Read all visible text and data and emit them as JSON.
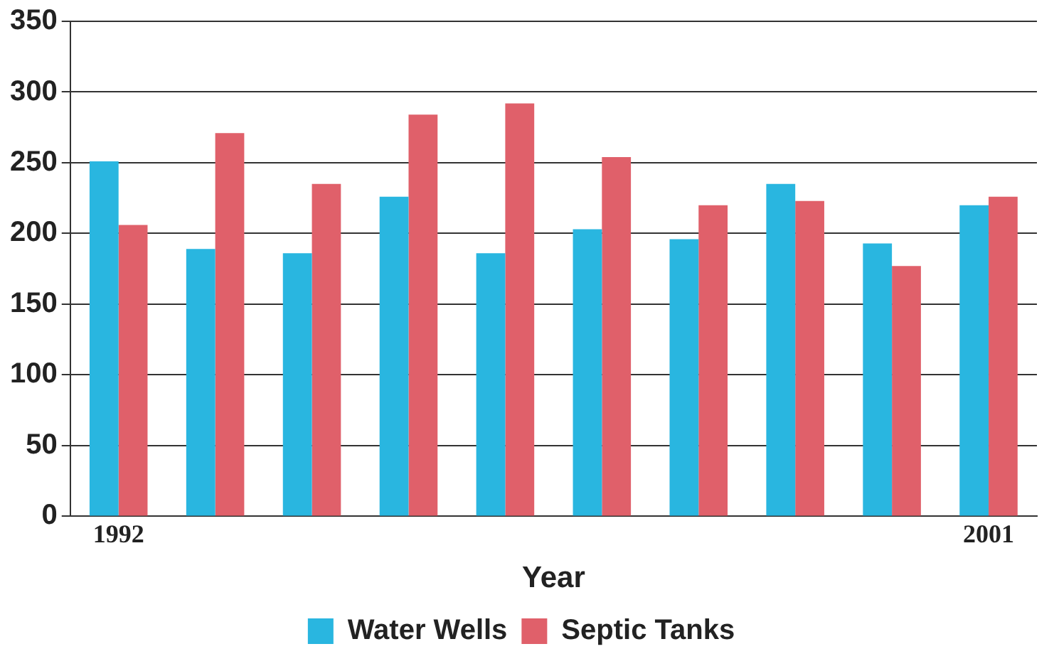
{
  "chart_data": {
    "type": "bar",
    "xlabel": "Year",
    "categories": [
      "1992",
      null,
      null,
      null,
      null,
      null,
      null,
      null,
      null,
      "2001"
    ],
    "series": [
      {
        "name": "Water Wells",
        "color": "#29b6e0",
        "values": [
          251,
          189,
          186,
          226,
          186,
          203,
          196,
          235,
          193,
          220
        ]
      },
      {
        "name": "Septic Tanks",
        "color": "#e0606a",
        "values": [
          206,
          271,
          235,
          284,
          292,
          254,
          220,
          223,
          177,
          226
        ]
      }
    ],
    "ylim": [
      0,
      350
    ],
    "yticks": [
      0,
      50,
      100,
      150,
      200,
      250,
      300,
      350
    ],
    "grid": "y",
    "legend": "bottom"
  }
}
